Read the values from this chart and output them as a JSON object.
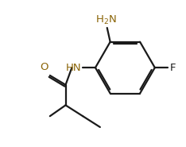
{
  "background_color": "#ffffff",
  "line_color": "#1a1a1a",
  "label_color_HN": "#8B6508",
  "label_color_O": "#8B6508",
  "label_color_F": "#1a1a1a",
  "label_color_H2N": "#8B6508",
  "line_width": 1.6,
  "dbo": 0.022,
  "figsize": [
    2.34,
    1.85
  ],
  "dpi": 100,
  "xlim": [
    0,
    2.34
  ],
  "ylim": [
    0,
    1.85
  ]
}
